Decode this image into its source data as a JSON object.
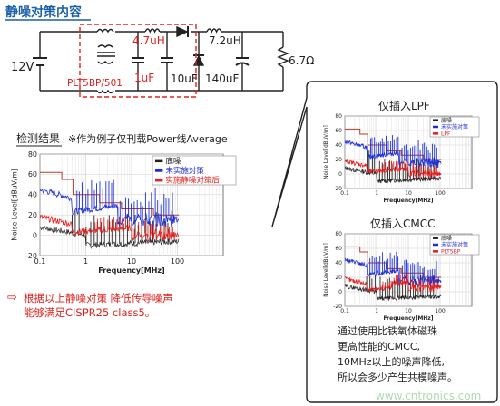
{
  "title": "静噪对策内容",
  "circuit": {
    "voltage": "12V",
    "cmcc_label": "PLT5BP/501",
    "inductor_1": "4.7uH",
    "cap_1": "1uF",
    "cap_2": "10uF",
    "inductor_2": "7.2uH",
    "cap_3": "140uF",
    "load": "6.7Ω"
  },
  "results": {
    "heading": "检测结果",
    "note": "※作为例子仅刊载Power线Average"
  },
  "main_chart": {
    "ylabel": "Noise Level[dBuV/m]",
    "xlabel": "Frequency[MHz]",
    "y_ticks": [
      "80",
      "60",
      "40",
      "20",
      "0",
      "-20"
    ],
    "x_ticks": [
      "0.1",
      "1",
      "10",
      "100"
    ],
    "legend": [
      "底噪",
      "未实施对策",
      "实施静噪对策后"
    ]
  },
  "conclusion": {
    "arrow": "⇨",
    "line1": "根据以上静噪对策 降低传导噪声",
    "line2": "能够满足CISPR25 class5。"
  },
  "lpf_panel": {
    "title": "仅插入LPF",
    "ylabel": "Noise Level[dBuV/m]",
    "xlabel": "Frequency[MHz]",
    "y_ticks": [
      "80",
      "60",
      "40",
      "20",
      "0",
      "-20"
    ],
    "x_ticks": [
      "0.1",
      "1",
      "10",
      "100"
    ],
    "legend": [
      "底噪",
      "未实施对策",
      "LPF"
    ]
  },
  "cmcc_panel": {
    "title": "仅插入CMCC",
    "ylabel": "Noise Level[dBuV/m]",
    "xlabel": "Frequency[MHz]",
    "y_ticks": [
      "80",
      "60",
      "40",
      "20",
      "0",
      "-20"
    ],
    "x_ticks": [
      "0.1",
      "1",
      "10",
      "100"
    ],
    "legend": [
      "底噪",
      "未实施对策",
      "PLT5BP"
    ]
  },
  "explanation": {
    "line1": "通过使用比铁氧体磁珠",
    "line2": "更高性能的CMCC,",
    "line3": "10MHz以上的噪声降低,",
    "line4": "所以会多少产生共模噪声。"
  },
  "watermark": "www.cntronics.com",
  "colors": {
    "title": "#1a5fa8",
    "circuit_box": "#e0201e",
    "circuit_line": "#222222",
    "series_floor": "#222222",
    "series_before": "#1e2fd6",
    "series_after": "#ea1d1d",
    "limit": "#b03a2e",
    "conclusion": "#e0201e",
    "callout_border": "#222222"
  }
}
